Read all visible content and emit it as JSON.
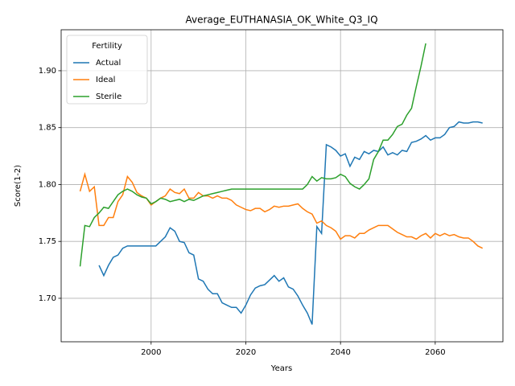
{
  "chart_data": {
    "type": "line",
    "title": "Average_EUTHANASIA_OK_White_Q3_IQ",
    "xlabel": "Years",
    "ylabel": "Score(1-2)",
    "legend_title": "Fertility",
    "legend": "upper left",
    "grid": true,
    "xlim": [
      1981.0,
      2074.3
    ],
    "ylim": [
      1.6618,
      1.936
    ],
    "xticks": [
      2000,
      2020,
      2040,
      2060
    ],
    "yticks": [
      {
        "value": 1.7,
        "label": "1.70"
      },
      1.75,
      {
        "value": 1.8,
        "label": "1.80"
      },
      1.85,
      {
        "value": 1.9,
        "label": "1.90"
      }
    ],
    "x": [
      1985,
      1986,
      1987,
      1988,
      1989,
      1990,
      1991,
      1992,
      1993,
      1994,
      1995,
      1996,
      1997,
      1998,
      1999,
      2000,
      2001,
      2002,
      2003,
      2004,
      2005,
      2006,
      2007,
      2008,
      2009,
      2010,
      2011,
      2012,
      2013,
      2014,
      2015,
      2016,
      2017,
      2018,
      2019,
      2020,
      2021,
      2022,
      2023,
      2024,
      2025,
      2026,
      2027,
      2028,
      2029,
      2030,
      2031,
      2032,
      2033,
      2034,
      2035,
      2036,
      2037,
      2038,
      2039,
      2040,
      2041,
      2042,
      2043,
      2044,
      2045,
      2046,
      2047,
      2048,
      2049,
      2050,
      2051,
      2052,
      2053,
      2054,
      2055,
      2056,
      2057,
      2058,
      2059,
      2060,
      2061,
      2062,
      2063,
      2064,
      2065,
      2066,
      2067,
      2068,
      2069,
      2070
    ],
    "series": [
      {
        "name": "Actual",
        "color": "#1f77b4",
        "values": [
          null,
          null,
          null,
          null,
          1.729,
          1.72,
          1.729,
          1.736,
          1.738,
          1.744,
          1.746,
          1.746,
          1.746,
          1.746,
          1.746,
          1.746,
          1.746,
          1.75,
          1.754,
          1.762,
          1.759,
          1.75,
          1.749,
          1.74,
          1.738,
          1.717,
          1.715,
          1.708,
          1.704,
          1.704,
          1.696,
          1.694,
          1.692,
          1.692,
          1.687,
          1.694,
          1.703,
          1.709,
          1.711,
          1.712,
          1.716,
          1.72,
          1.715,
          1.718,
          1.71,
          1.708,
          1.702,
          1.694,
          1.687,
          1.677,
          1.763,
          1.757,
          1.835,
          1.833,
          1.83,
          1.825,
          1.827,
          1.816,
          1.824,
          1.822,
          1.829,
          1.827,
          1.83,
          1.829,
          1.833,
          1.826,
          1.828,
          1.826,
          1.83,
          1.829,
          1.837,
          1.838,
          1.84,
          1.843,
          1.839,
          1.841,
          1.841,
          1.844,
          1.85,
          1.851,
          1.855,
          1.854,
          1.854,
          1.855,
          1.855,
          1.854
        ]
      },
      {
        "name": "Ideal",
        "color": "#ff7f0e",
        "values": [
          1.794,
          1.809,
          1.794,
          1.798,
          1.764,
          1.764,
          1.771,
          1.771,
          1.785,
          1.791,
          1.807,
          1.802,
          1.793,
          1.79,
          1.788,
          1.782,
          1.785,
          1.788,
          1.79,
          1.796,
          1.793,
          1.792,
          1.796,
          1.788,
          1.788,
          1.793,
          1.79,
          1.79,
          1.788,
          1.79,
          1.788,
          1.788,
          1.786,
          1.782,
          1.78,
          1.778,
          1.777,
          1.779,
          1.779,
          1.776,
          1.778,
          1.781,
          1.78,
          1.781,
          1.781,
          1.782,
          1.783,
          1.779,
          1.776,
          1.774,
          1.766,
          1.768,
          1.764,
          1.762,
          1.759,
          1.752,
          1.755,
          1.755,
          1.753,
          1.757,
          1.757,
          1.76,
          1.762,
          1.764,
          1.764,
          1.764,
          1.761,
          1.758,
          1.756,
          1.754,
          1.754,
          1.752,
          1.755,
          1.757,
          1.753,
          1.757,
          1.755,
          1.757,
          1.755,
          1.756,
          1.754,
          1.753,
          1.753,
          1.75,
          1.746,
          1.744
        ]
      },
      {
        "name": "Sterile",
        "color": "#2ca02c",
        "values": [
          1.728,
          1.764,
          1.763,
          1.771,
          1.775,
          1.78,
          1.779,
          1.785,
          1.791,
          1.794,
          1.796,
          1.794,
          1.791,
          1.789,
          1.788,
          1.783,
          1.785,
          1.788,
          1.787,
          1.785,
          1.786,
          1.787,
          1.785,
          1.787,
          1.786,
          1.788,
          1.79,
          1.791,
          1.792,
          1.793,
          1.794,
          1.795,
          1.796,
          1.796,
          1.796,
          1.796,
          1.796,
          1.796,
          1.796,
          1.796,
          1.796,
          1.796,
          1.796,
          1.796,
          1.796,
          1.796,
          1.796,
          1.796,
          1.8,
          1.807,
          1.803,
          1.806,
          1.805,
          1.805,
          1.806,
          1.809,
          1.807,
          1.801,
          1.798,
          1.796,
          1.8,
          1.805,
          1.822,
          1.829,
          1.839,
          1.839,
          1.844,
          1.851,
          1.853,
          1.861,
          1.867,
          1.886,
          1.904,
          1.924,
          null,
          null,
          null,
          null,
          null,
          null,
          null,
          null,
          null,
          null,
          null,
          null
        ]
      }
    ]
  }
}
